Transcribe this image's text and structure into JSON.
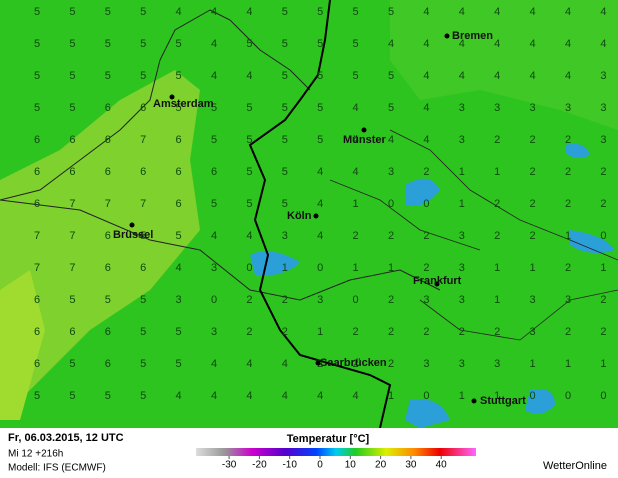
{
  "map": {
    "grid": [
      [
        5,
        5,
        5,
        5,
        4,
        4,
        4,
        5,
        5,
        5,
        5,
        4,
        4,
        4,
        4,
        4,
        4
      ],
      [
        5,
        5,
        5,
        5,
        5,
        4,
        5,
        5,
        5,
        5,
        4,
        4,
        4,
        4,
        4,
        4,
        4
      ],
      [
        5,
        5,
        5,
        5,
        5,
        4,
        4,
        5,
        5,
        5,
        5,
        4,
        4,
        4,
        4,
        4,
        3
      ],
      [
        5,
        5,
        6,
        6,
        5,
        5,
        5,
        5,
        5,
        4,
        5,
        4,
        3,
        3,
        3,
        3,
        3
      ],
      [
        6,
        6,
        6,
        7,
        6,
        5,
        5,
        5,
        5,
        4,
        4,
        4,
        3,
        2,
        2,
        2,
        3
      ],
      [
        6,
        6,
        6,
        6,
        6,
        6,
        5,
        5,
        4,
        4,
        3,
        2,
        1,
        1,
        2,
        2,
        2
      ],
      [
        6,
        7,
        7,
        7,
        6,
        5,
        5,
        5,
        4,
        1,
        0,
        0,
        1,
        2,
        2,
        2,
        2
      ],
      [
        7,
        7,
        6,
        5,
        5,
        4,
        4,
        3,
        4,
        2,
        2,
        2,
        3,
        2,
        2,
        1,
        0
      ],
      [
        7,
        7,
        6,
        6,
        4,
        3,
        0,
        1,
        0,
        1,
        1,
        2,
        3,
        1,
        1,
        2,
        1
      ],
      [
        6,
        5,
        5,
        5,
        3,
        0,
        2,
        2,
        3,
        0,
        2,
        3,
        3,
        1,
        3,
        3,
        2
      ],
      [
        6,
        6,
        6,
        5,
        5,
        3,
        2,
        2,
        1,
        2,
        2,
        2,
        2,
        2,
        3,
        2,
        2
      ],
      [
        6,
        5,
        6,
        5,
        5,
        4,
        4,
        4,
        2,
        2,
        2,
        3,
        3,
        3,
        1,
        1,
        1
      ],
      [
        5,
        5,
        5,
        5,
        4,
        4,
        4,
        4,
        4,
        4,
        1,
        0,
        1,
        1,
        0,
        0,
        0
      ]
    ],
    "cities": [
      "Bremen",
      "Amsterdam",
      "Münster",
      "Köln",
      "Brüssel",
      "Frankfurt",
      "Saarbrücken",
      "Stuttgart"
    ]
  },
  "footer": {
    "date": "Fr, 06.03.2015, 12 UTC",
    "run": "Mi 12 +216h",
    "model": "Modell: IFS (ECMWF)",
    "brand": "WetterOnline"
  },
  "legend": {
    "title": "Temperatur [°C]",
    "ticks": [
      -30,
      -20,
      -10,
      0,
      10,
      20,
      30,
      40
    ]
  }
}
